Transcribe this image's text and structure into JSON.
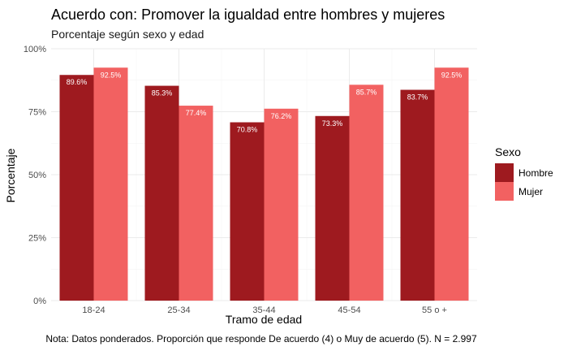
{
  "chart_data": {
    "type": "bar",
    "title": "Acuerdo con: Promover la igualdad entre hombres y mujeres",
    "subtitle": "Porcentaje según sexo y edad",
    "xlabel": "Tramo de edad",
    "ylabel": "Porcentaje",
    "categories": [
      "18-24",
      "25-34",
      "35-44",
      "45-54",
      "55 o +"
    ],
    "series": [
      {
        "name": "Hombre",
        "color": "#9e1a1f",
        "values": [
          89.6,
          85.3,
          70.8,
          73.3,
          83.7
        ],
        "labels": [
          "89.6%",
          "85.3%",
          "70.8%",
          "73.3%",
          "83.7%"
        ]
      },
      {
        "name": "Mujer",
        "color": "#f26161",
        "values": [
          92.5,
          77.4,
          76.2,
          85.7,
          92.5
        ],
        "labels": [
          "92.5%",
          "77.4%",
          "76.2%",
          "85.7%",
          "92.5%"
        ]
      }
    ],
    "ylim": [
      0,
      100
    ],
    "yticks": [
      0,
      25,
      50,
      75,
      100
    ],
    "ytick_labels": [
      "0%",
      "25%",
      "50%",
      "75%",
      "100%"
    ],
    "legend": {
      "title": "Sexo",
      "position": "right"
    },
    "grid": true,
    "caption": "Nota: Datos ponderados. Proporción que responde De acuerdo (4) o Muy de acuerdo (5). N = 2.997"
  }
}
